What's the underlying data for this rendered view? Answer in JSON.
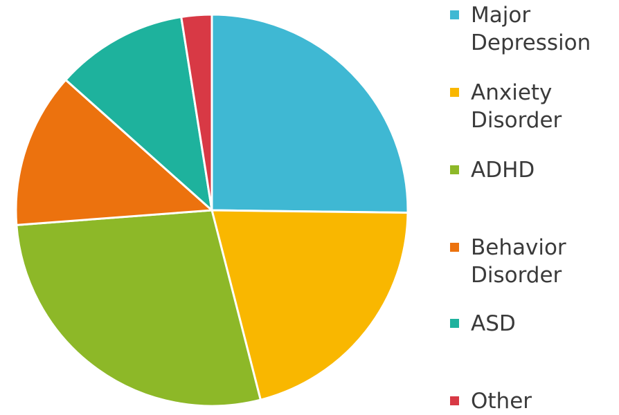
{
  "chart_data": {
    "type": "pie",
    "title": "",
    "series": [
      {
        "name": "Major Depression",
        "value": 25.2,
        "color": "#3fb8d3"
      },
      {
        "name": "Anxiety Disorder",
        "value": 20.8,
        "color": "#f9b700"
      },
      {
        "name": "ADHD",
        "value": 27.8,
        "color": "#8db828"
      },
      {
        "name": "Behavior Disorder",
        "value": 12.8,
        "color": "#ec720e"
      },
      {
        "name": "ASD",
        "value": 10.9,
        "color": "#1eb29d"
      },
      {
        "name": "Other",
        "value": 2.5,
        "color": "#d83945"
      }
    ],
    "start_angle": "12 o'clock",
    "direction": "clockwise",
    "legend": "right"
  },
  "legend": {
    "items": [
      {
        "line1": "Major",
        "line2": "Depression"
      },
      {
        "line1": "Anxiety",
        "line2": "Disorder"
      },
      {
        "line1": "ADHD",
        "line2": ""
      },
      {
        "line1": "Behavior",
        "line2": "Disorder"
      },
      {
        "line1": "ASD",
        "line2": ""
      },
      {
        "line1": "Other",
        "line2": ""
      }
    ]
  }
}
